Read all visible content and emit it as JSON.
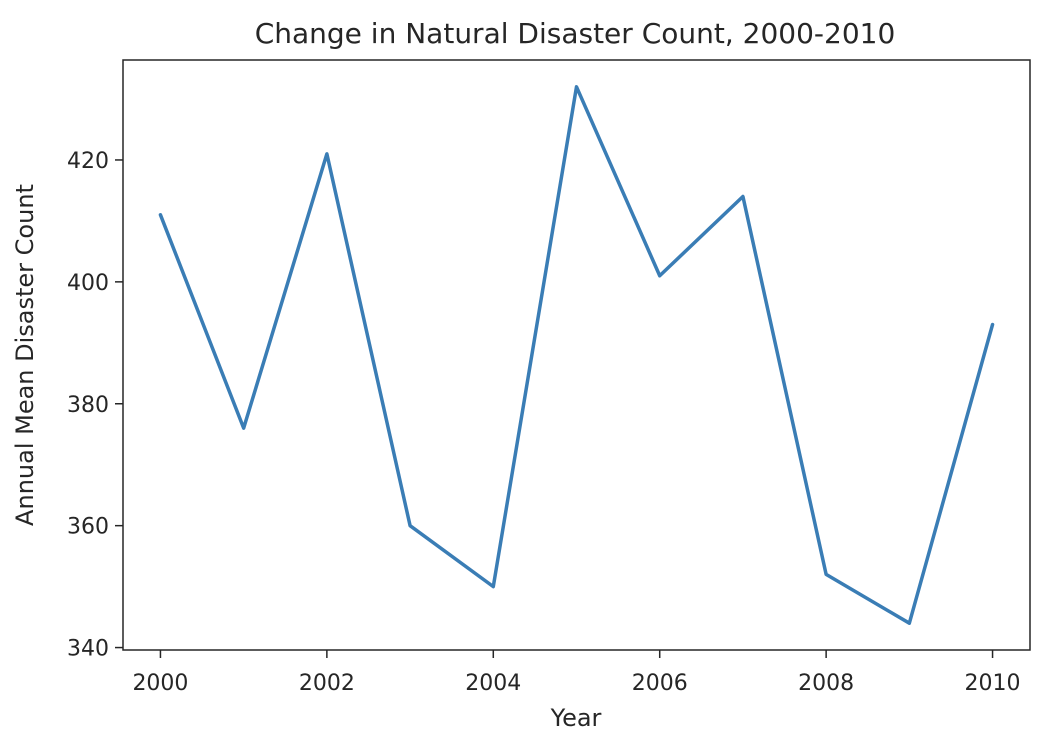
{
  "chart_data": {
    "type": "line",
    "title": "Change in Natural Disaster Count, 2000-2010",
    "xlabel": "Year",
    "ylabel": "Annual Mean Disaster Count",
    "x": [
      2000,
      2001,
      2002,
      2003,
      2004,
      2005,
      2006,
      2007,
      2008,
      2009,
      2010
    ],
    "series": [
      {
        "values": [
          411,
          376,
          421,
          360,
          350,
          432,
          401,
          414,
          352,
          344,
          393
        ],
        "color": "#3a7db5"
      }
    ],
    "xticks": [
      2000,
      2002,
      2004,
      2006,
      2008,
      2010
    ],
    "xtick_labels": [
      "2000",
      "2002",
      "2004",
      "2006",
      "2008",
      "2010"
    ],
    "yticks": [
      340,
      360,
      380,
      400,
      420
    ],
    "ytick_labels": [
      "340",
      "360",
      "380",
      "400",
      "420"
    ],
    "xlim": [
      1999.55,
      2010.45
    ],
    "ylim": [
      339.6,
      436.4
    ],
    "grid": false,
    "legend": "none"
  }
}
